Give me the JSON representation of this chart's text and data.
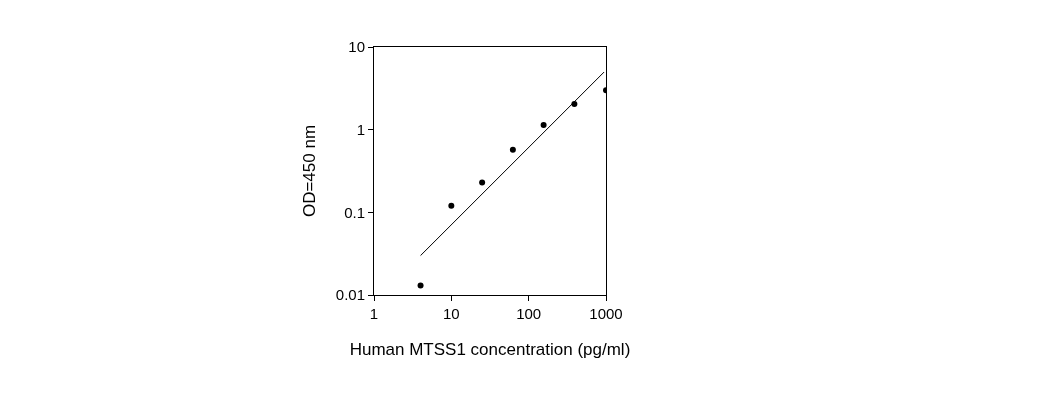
{
  "chart_data": {
    "type": "scatter",
    "xlabel": "Human MTSS1 concentration (pg/ml)",
    "ylabel": "OD=450 nm",
    "log": "xy",
    "xlim": [
      1,
      1000
    ],
    "xticks": [
      1,
      10,
      100,
      1000
    ],
    "ylim": [
      0.01,
      10
    ],
    "yticks": [
      0.01,
      0.1,
      1,
      10
    ],
    "series": [
      {
        "color": "#000000",
        "marker": "circle",
        "x": [
          4,
          10,
          25,
          62.5,
          156,
          390,
          1000
        ],
        "values": [
          0.013,
          0.12,
          0.23,
          0.57,
          1.14,
          2.04,
          3.0
        ]
      },
      {
        "type": "line",
        "color": "#000000",
        "marker": "none",
        "line_style": "solid",
        "x": [
          4,
          945
        ],
        "values": [
          0.03,
          4.98
        ]
      }
    ]
  }
}
